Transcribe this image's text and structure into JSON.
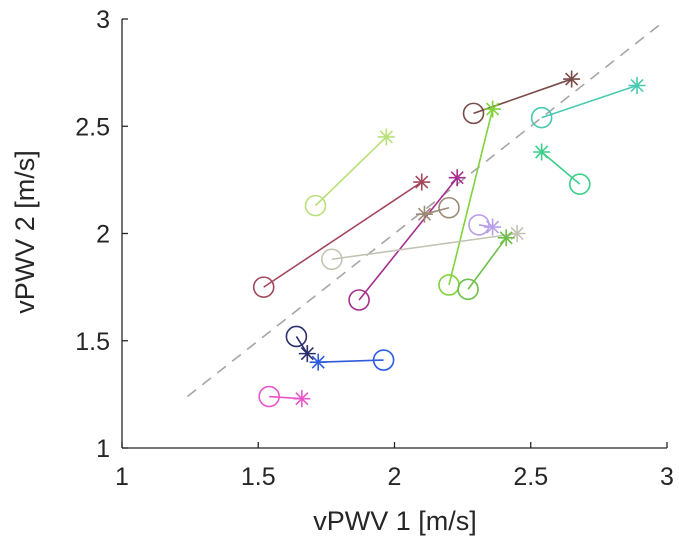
{
  "chart_data": {
    "type": "scatter",
    "title": "",
    "xlabel": "vPWV 1 [m/s]",
    "ylabel": "vPWV 2 [m/s]",
    "xlim": [
      1,
      3
    ],
    "ylim": [
      1,
      3
    ],
    "xticks": [
      1,
      1.5,
      2,
      2.5,
      3
    ],
    "yticks": [
      1,
      1.5,
      2,
      2.5,
      3
    ],
    "xtick_labels": [
      "1",
      "1.5",
      "2",
      "2.5",
      "3"
    ],
    "ytick_labels": [
      "1",
      "1.5",
      "2",
      "2.5",
      "3"
    ],
    "grid": false,
    "legend": "none",
    "markers": {
      "first": "circle",
      "second": "asterisk"
    },
    "identity_line": {
      "x": [
        1.24,
        2.97
      ],
      "y": [
        1.24,
        2.97
      ],
      "style": "dashed",
      "color": "#a6a6a6"
    },
    "pairs": [
      {
        "color": "#7a4a48",
        "circle": [
          2.29,
          2.56
        ],
        "star": [
          2.65,
          2.72
        ]
      },
      {
        "color": "#48c9b0",
        "circle": [
          2.54,
          2.54
        ],
        "star": [
          2.89,
          2.69
        ]
      },
      {
        "color": "#3ccf8a",
        "circle": [
          2.68,
          2.23
        ],
        "star": [
          2.54,
          2.38
        ]
      },
      {
        "color": "#b8e07a",
        "circle": [
          1.71,
          2.13
        ],
        "star": [
          1.97,
          2.45
        ]
      },
      {
        "color": "#a3485c",
        "circle": [
          1.52,
          1.75
        ],
        "star": [
          2.1,
          2.24
        ]
      },
      {
        "color": "#a6308f",
        "circle": [
          1.87,
          1.69
        ],
        "star": [
          2.23,
          2.26
        ]
      },
      {
        "color": "#9c8a74",
        "circle": [
          2.2,
          2.12
        ],
        "star": [
          2.11,
          2.09
        ]
      },
      {
        "color": "#7fd43c",
        "circle": [
          2.2,
          1.76
        ],
        "star": [
          2.36,
          2.58
        ]
      },
      {
        "color": "#c4c2b4",
        "circle": [
          1.77,
          1.88
        ],
        "star": [
          2.45,
          2.0
        ]
      },
      {
        "color": "#6ec04a",
        "circle": [
          2.27,
          1.74
        ],
        "star": [
          2.41,
          1.98
        ]
      },
      {
        "color": "#b89ee8",
        "circle": [
          2.31,
          2.04
        ],
        "star": [
          2.36,
          2.03
        ]
      },
      {
        "color": "#2a2e6b",
        "circle": [
          1.64,
          1.52
        ],
        "star": [
          1.68,
          1.44
        ]
      },
      {
        "color": "#2d5cdc",
        "circle": [
          1.96,
          1.41
        ],
        "star": [
          1.72,
          1.4
        ]
      },
      {
        "color": "#ea55c8",
        "circle": [
          1.54,
          1.24
        ],
        "star": [
          1.66,
          1.23
        ]
      }
    ]
  }
}
